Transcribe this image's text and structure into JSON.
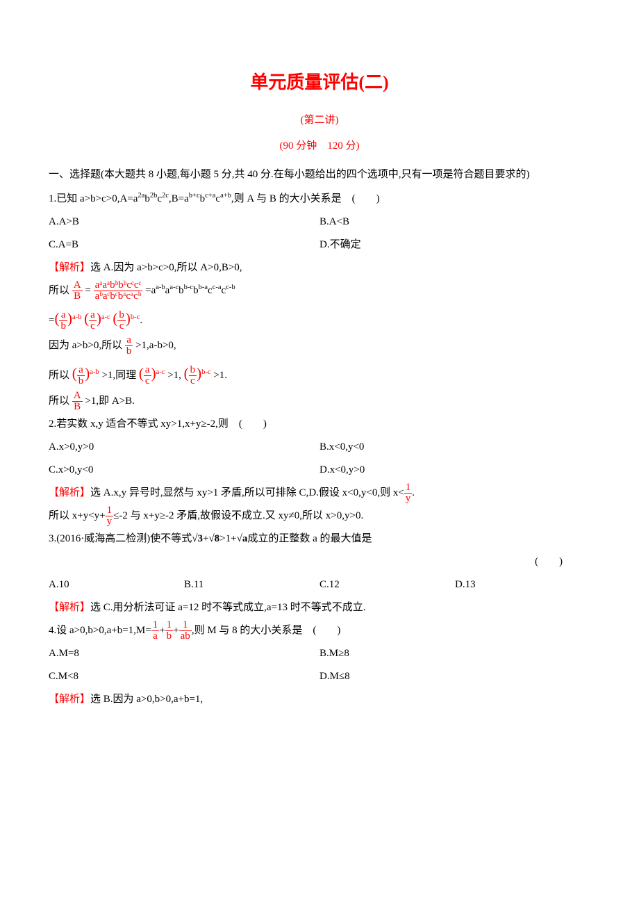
{
  "title": "单元质量评估(二)",
  "subtitle": "(第二讲)",
  "time": "(90 分钟　120 分)",
  "section_intro": "一、选择题(本大题共 8 小题,每小题 5 分,共 40 分.在每小题给出的四个选项中,只有一项是符合题目要求的)",
  "q1": {
    "stem_prefix": "1.已知 a>b>c>0,A=a",
    "stem_part2": "b",
    "stem_part3": "c",
    "stem_part4": ",B=a",
    "stem_part5": "b",
    "stem_part6": "c",
    "stem_suffix": ",则 A 与 B 的大小关系是　(　　)",
    "exp_2a": "2a",
    "exp_2b": "2b",
    "exp_2c": "2c",
    "exp_bc": "b+c",
    "exp_ca": "c+a",
    "exp_ab": "a+b",
    "optA": "A.A>B",
    "optB": "B.A<B",
    "optC": "C.A=B",
    "optD": "D.不确定",
    "ans_label": "【解析】",
    "ans_line1": "选 A.因为 a>b>c>0,所以 A>0,B>0,",
    "ans_line2_pre": "所以",
    "frac_AB_num": "A",
    "frac_AB_den": "B",
    "eq": "=",
    "big_num": "aᵃaᵃbᵇbᵇcᶜcᶜ",
    "big_den": "aᵇaᶜbᶜbᵃcᵃcᵇ",
    "ans_line2_mid": "=a",
    "e1": "a-b",
    "e2": "a-c",
    "e3": "b-c",
    "e4": "b-a",
    "e5": "c-a",
    "e6": "c-b",
    "ans_line3_eq": "=",
    "dot": ".",
    "ans_line4_pre": "因为 a>b>0,所以",
    "frac_ab_num": "a",
    "frac_ab_den": "b",
    "ans_line4_suf": ">1,a-b>0,",
    "ans_line5_pre": "所以",
    "gt1": ">1,同理",
    "gt1b": ">1,",
    "gt1c": ">1.",
    "frac_ac_num": "a",
    "frac_ac_den": "c",
    "frac_bc_num": "b",
    "frac_bc_den": "c",
    "ans_line6_pre": "所以",
    "frac_AB2_num": "A",
    "frac_AB2_den": "B",
    "ans_line6_suf": ">1,即 A>B."
  },
  "q2": {
    "stem": "2.若实数 x,y 适合不等式 xy>1,x+y≥-2,则　(　　)",
    "optA": "A.x>0,y>0",
    "optB": "B.x<0,y<0",
    "optC": "C.x>0,y<0",
    "optD": "D.x<0,y>0",
    "ans_label": "【解析】",
    "ans_line1_pre": "选 A.x,y 异号时,显然与 xy>1 矛盾,所以可排除 C,D.假设 x<0,y<0,则 x<",
    "frac1_num": "1",
    "frac1_den": "y",
    "ans_line1_suf": ".",
    "ans_line2_pre": "所以 x+y<y+",
    "ans_line2_suf": "≤-2 与 x+y≥-2 矛盾,故假设不成立.又 xy≠0,所以 x>0,y>0."
  },
  "q3": {
    "stem_pre": "3.(2016·威海高二检测)使不等式",
    "s3": "√3",
    "plus": "+",
    "s8": "√8",
    "gt": ">1+",
    "sa": "√a",
    "stem_suf": "成立的正整数 a 的最大值是",
    "paren": "(　　)",
    "optA": "A.10",
    "optB": "B.11",
    "optC": "C.12",
    "optD": "D.13",
    "ans_label": "【解析】",
    "ans": "选 C.用分析法可证 a=12 时不等式成立,a=13 时不等式不成立."
  },
  "q4": {
    "stem_pre": "4.设 a>0,b>0,a+b=1,M=",
    "f1n": "1",
    "f1d": "a",
    "f2n": "1",
    "f2d": "b",
    "f3n": "1",
    "f3d": "ab",
    "plus": "+",
    "stem_suf": ",则 M 与 8 的大小关系是　(　　)",
    "optA": "A.M=8",
    "optB": "B.M≥8",
    "optC": "C.M<8",
    "optD": "D.M≤8",
    "ans_label": "【解析】",
    "ans": "选 B.因为 a>0,b>0,a+b=1,"
  }
}
